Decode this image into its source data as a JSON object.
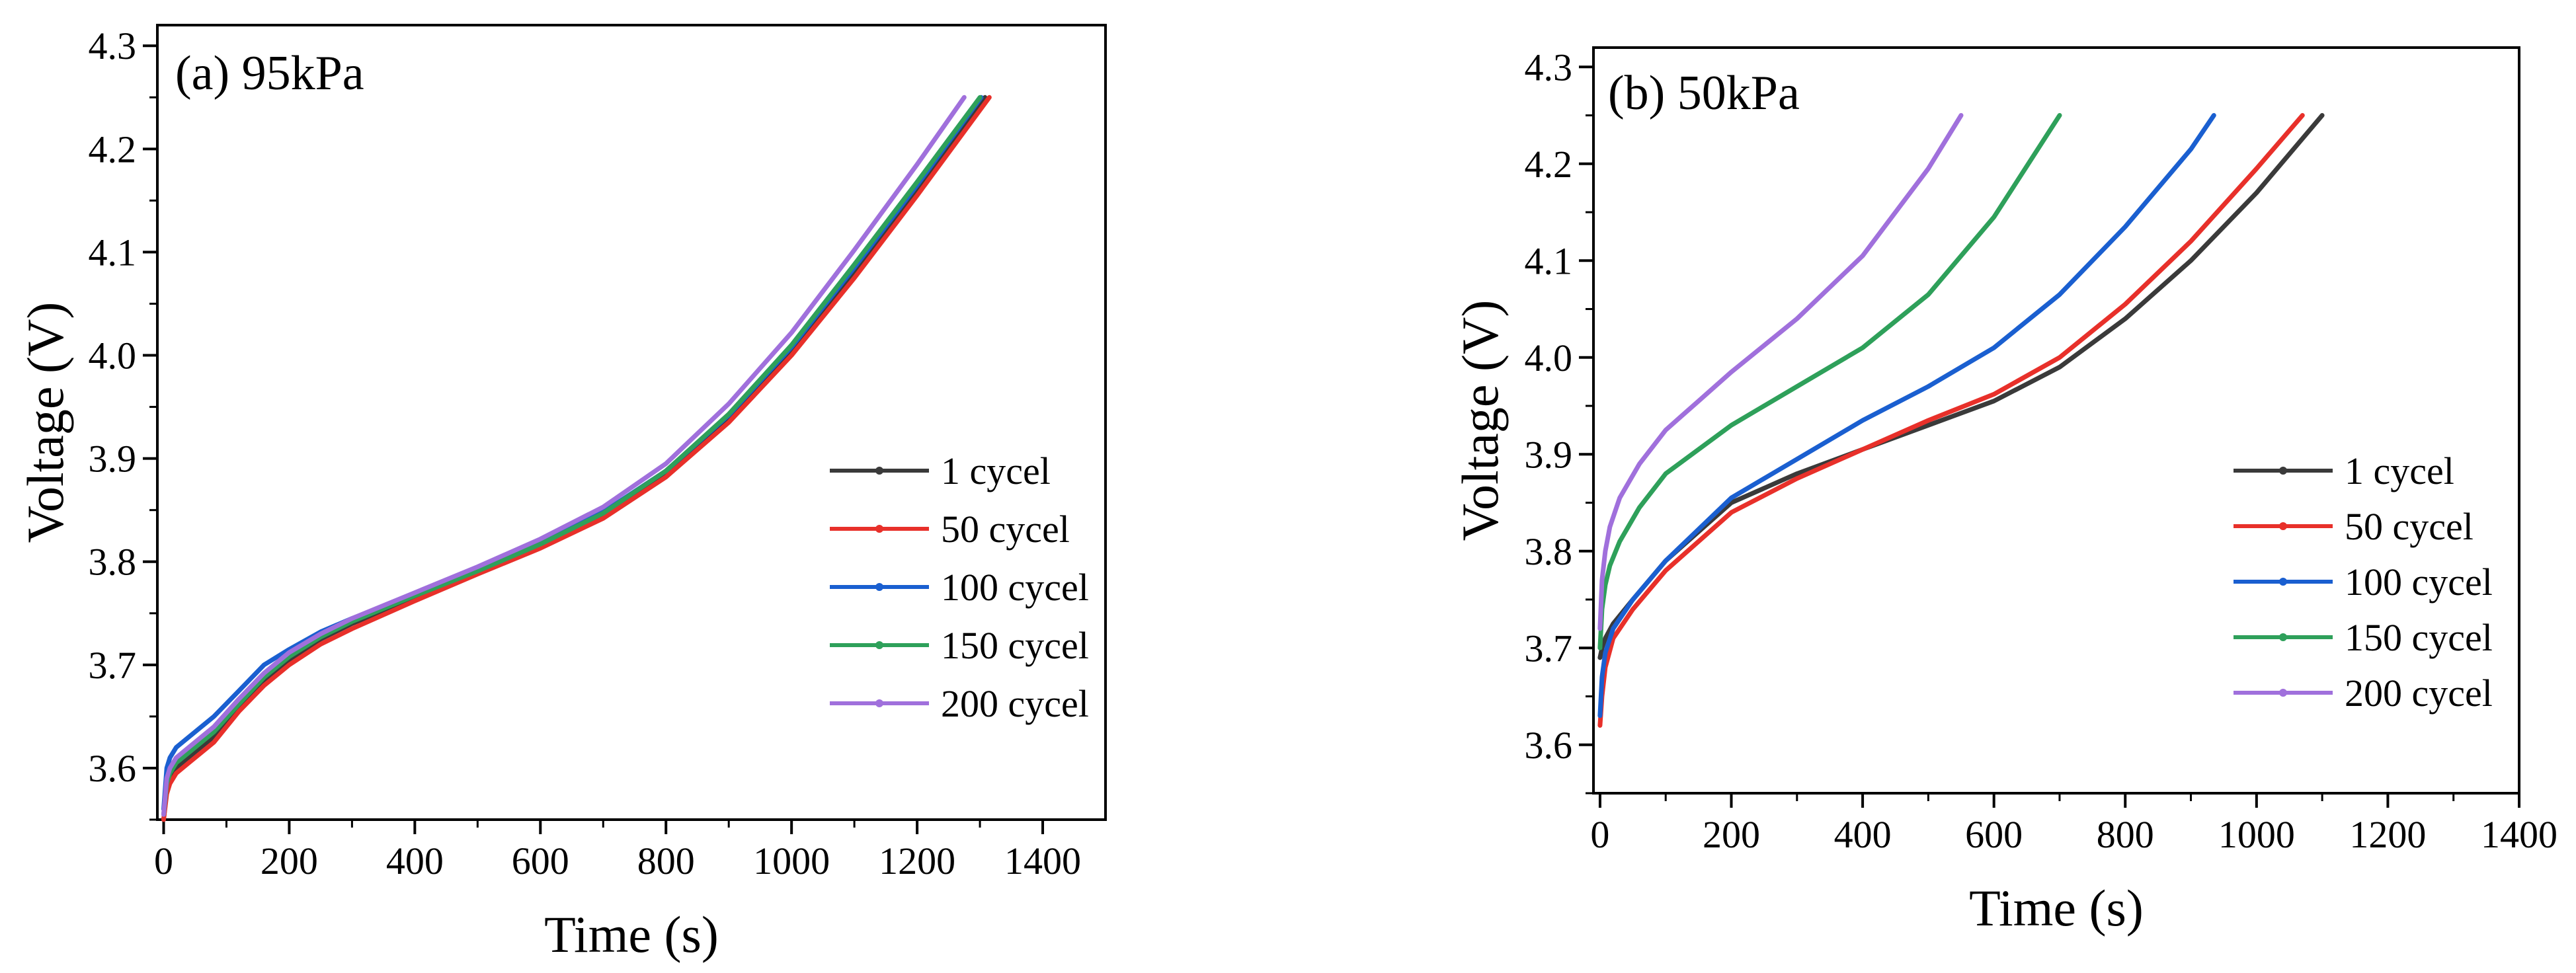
{
  "chart_data": [
    {
      "type": "line",
      "title": "(a) 95kPa",
      "xlabel": "Time (s)",
      "ylabel": "Voltage (V)",
      "xlim": [
        -10,
        1500
      ],
      "ylim": [
        3.55,
        4.32
      ],
      "xticks": [
        0,
        200,
        400,
        600,
        800,
        1000,
        1200,
        1400
      ],
      "yticks": [
        3.6,
        3.7,
        3.8,
        3.9,
        4.0,
        4.1,
        4.2,
        4.3
      ],
      "xtick_labels": [
        "0",
        "200",
        "400",
        "600",
        "800",
        "1000",
        "1200",
        "1400"
      ],
      "ytick_labels": [
        "3.6",
        "3.7",
        "3.8",
        "3.9",
        "4.0",
        "4.1",
        "4.2",
        "4.3"
      ],
      "legend_position": "center-right",
      "grid": false,
      "series": [
        {
          "name": "1 cycel",
          "color": "#3a3a3a",
          "x": [
            0,
            5,
            10,
            20,
            40,
            80,
            120,
            160,
            200,
            250,
            300,
            400,
            500,
            600,
            700,
            800,
            900,
            1000,
            1100,
            1200,
            1308
          ],
          "y": [
            3.55,
            3.58,
            3.59,
            3.6,
            3.61,
            3.63,
            3.66,
            3.685,
            3.705,
            3.725,
            3.74,
            3.765,
            3.79,
            3.815,
            3.845,
            3.885,
            3.94,
            4.005,
            4.08,
            4.16,
            4.25
          ]
        },
        {
          "name": "50 cycel",
          "color": "#e8302a",
          "x": [
            0,
            5,
            10,
            20,
            40,
            80,
            120,
            160,
            200,
            250,
            300,
            400,
            500,
            600,
            700,
            800,
            900,
            1000,
            1100,
            1200,
            1315
          ],
          "y": [
            3.55,
            3.575,
            3.585,
            3.595,
            3.605,
            3.625,
            3.655,
            3.68,
            3.7,
            3.72,
            3.735,
            3.762,
            3.788,
            3.813,
            3.842,
            3.882,
            3.935,
            4.0,
            4.075,
            4.155,
            4.25
          ]
        },
        {
          "name": "100 cycel",
          "color": "#1a5fd0",
          "x": [
            0,
            5,
            10,
            20,
            40,
            80,
            120,
            160,
            200,
            250,
            300,
            400,
            500,
            600,
            700,
            800,
            900,
            1000,
            1100,
            1200,
            1302
          ],
          "y": [
            3.56,
            3.6,
            3.61,
            3.62,
            3.63,
            3.65,
            3.675,
            3.7,
            3.715,
            3.732,
            3.745,
            3.768,
            3.792,
            3.818,
            3.848,
            3.888,
            3.942,
            4.008,
            4.085,
            4.165,
            4.25
          ]
        },
        {
          "name": "150 cycel",
          "color": "#2ea05a",
          "x": [
            0,
            5,
            10,
            20,
            40,
            80,
            120,
            160,
            200,
            250,
            300,
            400,
            500,
            600,
            700,
            800,
            900,
            1000,
            1100,
            1200,
            1300
          ],
          "y": [
            3.555,
            3.585,
            3.595,
            3.605,
            3.615,
            3.635,
            3.662,
            3.688,
            3.708,
            3.727,
            3.742,
            3.767,
            3.791,
            3.817,
            3.847,
            3.888,
            3.943,
            4.01,
            4.088,
            4.168,
            4.25
          ]
        },
        {
          "name": "200 cycel",
          "color": "#a070dc",
          "x": [
            0,
            5,
            10,
            20,
            40,
            80,
            120,
            160,
            200,
            250,
            300,
            400,
            500,
            600,
            700,
            800,
            900,
            1000,
            1100,
            1200,
            1275
          ],
          "y": [
            3.555,
            3.59,
            3.6,
            3.61,
            3.62,
            3.64,
            3.667,
            3.692,
            3.712,
            3.73,
            3.745,
            3.77,
            3.795,
            3.822,
            3.853,
            3.895,
            3.953,
            4.022,
            4.102,
            4.185,
            4.25
          ]
        }
      ]
    },
    {
      "type": "line",
      "title": "(b) 50kPa",
      "xlabel": "Time (s)",
      "ylabel": "Voltage (V)",
      "xlim": [
        -10,
        1400
      ],
      "ylim": [
        3.55,
        4.32
      ],
      "xticks": [
        0,
        200,
        400,
        600,
        800,
        1000,
        1200,
        1400
      ],
      "yticks": [
        3.6,
        3.7,
        3.8,
        3.9,
        4.0,
        4.1,
        4.2,
        4.3
      ],
      "xtick_labels": [
        "0",
        "200",
        "400",
        "600",
        "800",
        "1000",
        "1200",
        "1400"
      ],
      "ytick_labels": [
        "3.6",
        "3.7",
        "3.8",
        "3.9",
        "4.0",
        "4.1",
        "4.2",
        "4.3"
      ],
      "legend_position": "center-right",
      "grid": false,
      "series": [
        {
          "name": "1 cycel",
          "color": "#3a3a3a",
          "x": [
            0,
            3,
            8,
            20,
            50,
            100,
            200,
            300,
            400,
            500,
            600,
            700,
            800,
            900,
            1000,
            1100
          ],
          "y": [
            3.69,
            3.7,
            3.71,
            3.725,
            3.75,
            3.79,
            3.85,
            3.88,
            3.905,
            3.93,
            3.955,
            3.99,
            4.04,
            4.1,
            4.17,
            4.25
          ]
        },
        {
          "name": "50 cycel",
          "color": "#e8302a",
          "x": [
            0,
            3,
            8,
            20,
            50,
            100,
            200,
            300,
            400,
            500,
            600,
            700,
            800,
            900,
            1000,
            1070
          ],
          "y": [
            3.62,
            3.65,
            3.68,
            3.71,
            3.74,
            3.78,
            3.84,
            3.875,
            3.905,
            3.935,
            3.962,
            4.0,
            4.055,
            4.12,
            4.195,
            4.25
          ]
        },
        {
          "name": "100 cycel",
          "color": "#1a5fd0",
          "x": [
            0,
            3,
            8,
            20,
            50,
            100,
            200,
            300,
            400,
            500,
            600,
            700,
            800,
            900,
            935
          ],
          "y": [
            3.63,
            3.67,
            3.695,
            3.72,
            3.75,
            3.79,
            3.855,
            3.895,
            3.935,
            3.97,
            4.01,
            4.065,
            4.135,
            4.215,
            4.25
          ]
        },
        {
          "name": "150 cycel",
          "color": "#2ea05a",
          "x": [
            0,
            3,
            8,
            15,
            30,
            60,
            100,
            200,
            300,
            400,
            500,
            600,
            700
          ],
          "y": [
            3.7,
            3.74,
            3.765,
            3.785,
            3.81,
            3.845,
            3.88,
            3.93,
            3.97,
            4.01,
            4.065,
            4.145,
            4.25
          ]
        },
        {
          "name": "200 cycel",
          "color": "#a070dc",
          "x": [
            0,
            3,
            8,
            15,
            30,
            60,
            100,
            150,
            200,
            300,
            400,
            500,
            550
          ],
          "y": [
            3.72,
            3.77,
            3.8,
            3.825,
            3.855,
            3.89,
            3.925,
            3.955,
            3.985,
            4.04,
            4.105,
            4.195,
            4.25
          ]
        }
      ]
    }
  ]
}
